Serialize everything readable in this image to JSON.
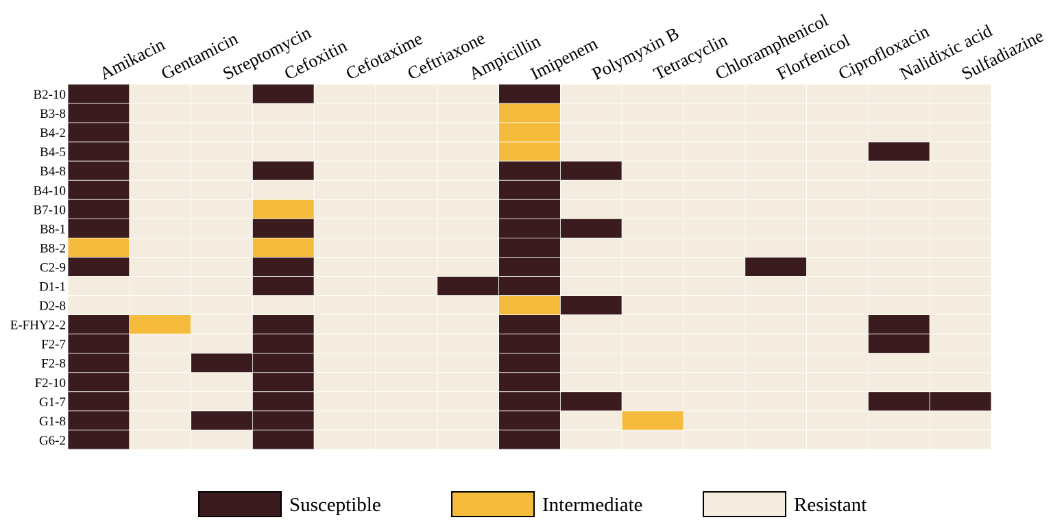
{
  "chart_data": {
    "type": "heatmap",
    "title": "",
    "columns": [
      "Amikacin",
      "Gentamicin",
      "Streptomycin",
      "Cefoxitin",
      "Cefotaxime",
      "Ceftriaxone",
      "Ampicillin",
      "Imipenem",
      "Polymyxin B",
      "Tetracyclin",
      "Chloramphenicol",
      "Florfenicol",
      "Ciprofloxacin",
      "Nalidixic acid",
      "Sulfadiazine"
    ],
    "rows": [
      "B2-10",
      "B3-8",
      "B4-2",
      "B4-5",
      "B4-8",
      "B4-10",
      "B7-10",
      "B8-1",
      "B8-2",
      "C2-9",
      "D1-1",
      "D2-8",
      "E-FHY2-2",
      "F2-7",
      "F2-8",
      "F2-10",
      "G1-7",
      "G1-8",
      "G6-2"
    ],
    "categories": [
      "Susceptible",
      "Intermediate",
      "Resistant"
    ],
    "colors": {
      "Susceptible": "#3a1c1e",
      "Intermediate": "#f5bb3d",
      "Resistant": "#f5ece0"
    },
    "values": [
      [
        "S",
        "R",
        "R",
        "S",
        "R",
        "R",
        "R",
        "S",
        "R",
        "R",
        "R",
        "R",
        "R",
        "R",
        "R"
      ],
      [
        "S",
        "R",
        "R",
        "R",
        "R",
        "R",
        "R",
        "I",
        "R",
        "R",
        "R",
        "R",
        "R",
        "R",
        "R"
      ],
      [
        "S",
        "R",
        "R",
        "R",
        "R",
        "R",
        "R",
        "I",
        "R",
        "R",
        "R",
        "R",
        "R",
        "R",
        "R"
      ],
      [
        "S",
        "R",
        "R",
        "R",
        "R",
        "R",
        "R",
        "I",
        "R",
        "R",
        "R",
        "R",
        "R",
        "S",
        "R"
      ],
      [
        "S",
        "R",
        "R",
        "S",
        "R",
        "R",
        "R",
        "S",
        "S",
        "R",
        "R",
        "R",
        "R",
        "R",
        "R"
      ],
      [
        "S",
        "R",
        "R",
        "R",
        "R",
        "R",
        "R",
        "S",
        "R",
        "R",
        "R",
        "R",
        "R",
        "R",
        "R"
      ],
      [
        "S",
        "R",
        "R",
        "I",
        "R",
        "R",
        "R",
        "S",
        "R",
        "R",
        "R",
        "R",
        "R",
        "R",
        "R"
      ],
      [
        "S",
        "R",
        "R",
        "S",
        "R",
        "R",
        "R",
        "S",
        "S",
        "R",
        "R",
        "R",
        "R",
        "R",
        "R"
      ],
      [
        "I",
        "R",
        "R",
        "I",
        "R",
        "R",
        "R",
        "S",
        "R",
        "R",
        "R",
        "R",
        "R",
        "R",
        "R"
      ],
      [
        "S",
        "R",
        "R",
        "S",
        "R",
        "R",
        "R",
        "S",
        "R",
        "R",
        "R",
        "S",
        "R",
        "R",
        "R"
      ],
      [
        "R",
        "R",
        "R",
        "S",
        "R",
        "R",
        "S",
        "S",
        "R",
        "R",
        "R",
        "R",
        "R",
        "R",
        "R"
      ],
      [
        "R",
        "R",
        "R",
        "R",
        "R",
        "R",
        "R",
        "I",
        "S",
        "R",
        "R",
        "R",
        "R",
        "R",
        "R"
      ],
      [
        "S",
        "I",
        "R",
        "S",
        "R",
        "R",
        "R",
        "S",
        "R",
        "R",
        "R",
        "R",
        "R",
        "S",
        "R"
      ],
      [
        "S",
        "R",
        "R",
        "S",
        "R",
        "R",
        "R",
        "S",
        "R",
        "R",
        "R",
        "R",
        "R",
        "S",
        "R"
      ],
      [
        "S",
        "R",
        "S",
        "S",
        "R",
        "R",
        "R",
        "S",
        "R",
        "R",
        "R",
        "R",
        "R",
        "R",
        "R"
      ],
      [
        "S",
        "R",
        "R",
        "S",
        "R",
        "R",
        "R",
        "S",
        "R",
        "R",
        "R",
        "R",
        "R",
        "R",
        "R"
      ],
      [
        "S",
        "R",
        "R",
        "S",
        "R",
        "R",
        "R",
        "S",
        "S",
        "R",
        "R",
        "R",
        "R",
        "S",
        "S"
      ],
      [
        "S",
        "R",
        "S",
        "S",
        "R",
        "R",
        "R",
        "S",
        "R",
        "I",
        "R",
        "R",
        "R",
        "R",
        "R"
      ],
      [
        "S",
        "R",
        "R",
        "S",
        "R",
        "R",
        "R",
        "S",
        "R",
        "R",
        "R",
        "R",
        "R",
        "R",
        "R"
      ]
    ],
    "code_map": {
      "S": "Susceptible",
      "I": "Intermediate",
      "R": "Resistant"
    },
    "legend": [
      "Susceptible",
      "Intermediate",
      "Resistant"
    ],
    "legend_position": "bottom-center"
  }
}
